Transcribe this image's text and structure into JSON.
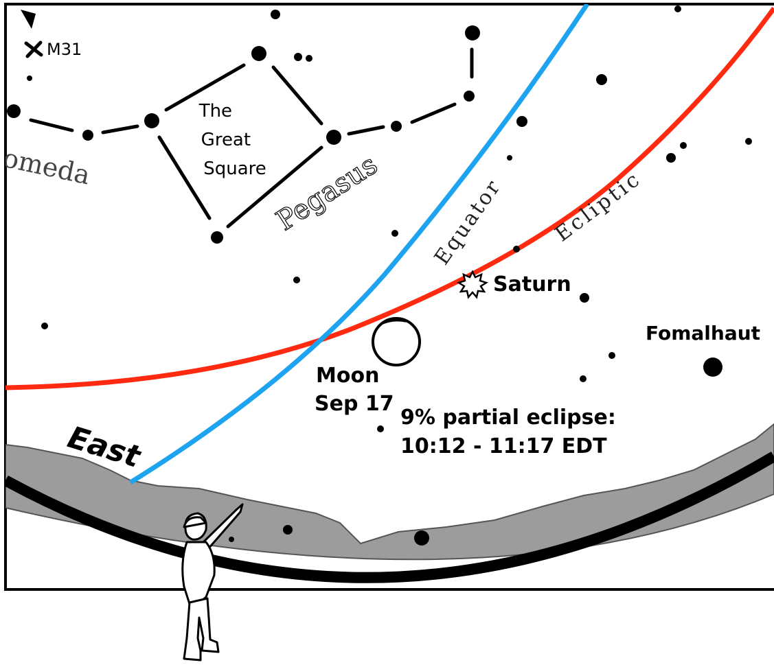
{
  "labels": {
    "m31": "M31",
    "andromeda": "omeda",
    "great_square": [
      "The",
      "Great",
      "Square"
    ],
    "pegasus": "Pegasus",
    "equator": "Equator",
    "ecliptic": "Ecliptic",
    "saturn": "Saturn",
    "fomalhaut": "Fomalhaut",
    "moon": "Moon",
    "moon_date": "Sep 17",
    "eclipse_line1": "9% partial eclipse:",
    "eclipse_line2": "10:12 - 11:17 EDT",
    "east": "East"
  },
  "colors": {
    "equator": "#1ea3f0",
    "ecliptic": "#ff2a10",
    "ground": "#999999",
    "ink": "#000000"
  }
}
